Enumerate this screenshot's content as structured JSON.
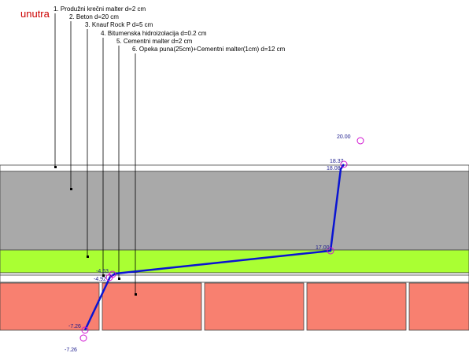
{
  "side_label": "unutra",
  "layers": [
    "1. Produžni krečni malter d=2 cm",
    "2. Beton d=20 cm",
    "3. Knauf Rock P d=5 cm",
    "4. Bitumenska hidroizolacija d=0.2 cm",
    "5. Cementni malter d=2 cm",
    "6. Opeka puna(25cm)+Cementni malter(1cm)  d=12 cm"
  ],
  "temperatures": [
    "20.00",
    "18.37",
    "18.08",
    "17.00",
    "-4.63",
    "-4.92",
    "-7.26",
    "-7.26"
  ]
}
